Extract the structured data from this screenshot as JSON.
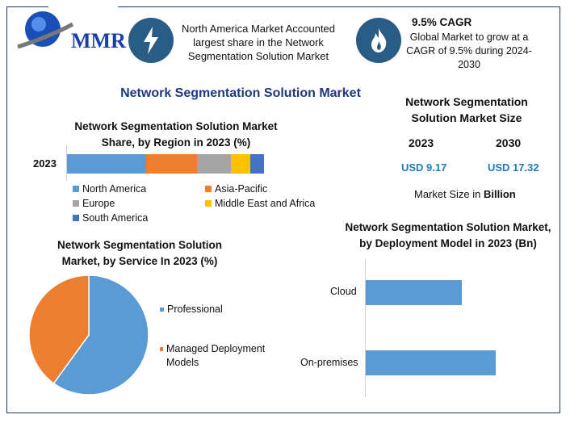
{
  "logo": {
    "text": "MMR"
  },
  "banner": {
    "highlight": "North America Market Accounted largest share in the Network Segmentation Solution Market",
    "cagr_title": "9.5% CAGR",
    "cagr_text": "Global Market to grow at a CAGR of 9.5% during 2024-2030",
    "icons": [
      "lightning-icon",
      "flame-icon"
    ]
  },
  "main_title": "Network Segmentation Solution Market",
  "market_size": {
    "title": "Network Segmentation Solution Market Size",
    "years": [
      "2023",
      "2030"
    ],
    "values": [
      "USD 9.17",
      "USD 17.32"
    ],
    "unit_prefix": "Market Size in ",
    "unit": "Billion"
  },
  "colors": {
    "accent": "#2a5d86",
    "title": "#1f3a7a",
    "value": "#1f7bc0"
  },
  "chart_data": [
    {
      "type": "bar",
      "orientation": "horizontal",
      "stacked": true,
      "title": "Network Segmentation Solution Market Share, by Region in 2023 (%)",
      "categories": [
        "2023"
      ],
      "series": [
        {
          "name": "North America",
          "values": [
            40
          ],
          "color": "#5b9bd5"
        },
        {
          "name": "Asia-Pacific",
          "values": [
            26
          ],
          "color": "#ed7d31"
        },
        {
          "name": "Europe",
          "values": [
            17
          ],
          "color": "#a5a5a5"
        },
        {
          "name": "Middle East and Africa",
          "values": [
            10
          ],
          "color": "#ffc000"
        },
        {
          "name": "South America",
          "values": [
            7
          ],
          "color": "#4472c4"
        }
      ],
      "legend": "bottom"
    },
    {
      "type": "pie",
      "title": "Network Segmentation Solution Market, by Service In 2023 (%)",
      "labels": [
        "Professional",
        "Managed Deployment Models"
      ],
      "values": [
        60,
        40
      ],
      "colors": [
        "#5b9bd5",
        "#ed7d31"
      ],
      "legend": "right"
    },
    {
      "type": "bar",
      "orientation": "horizontal",
      "title": "Network Segmentation Solution Market, by Deployment Model in 2023 (Bn)",
      "categories": [
        "Cloud",
        "On-premises"
      ],
      "values": [
        3.9,
        5.27
      ],
      "color": "#5b9bd5"
    }
  ]
}
